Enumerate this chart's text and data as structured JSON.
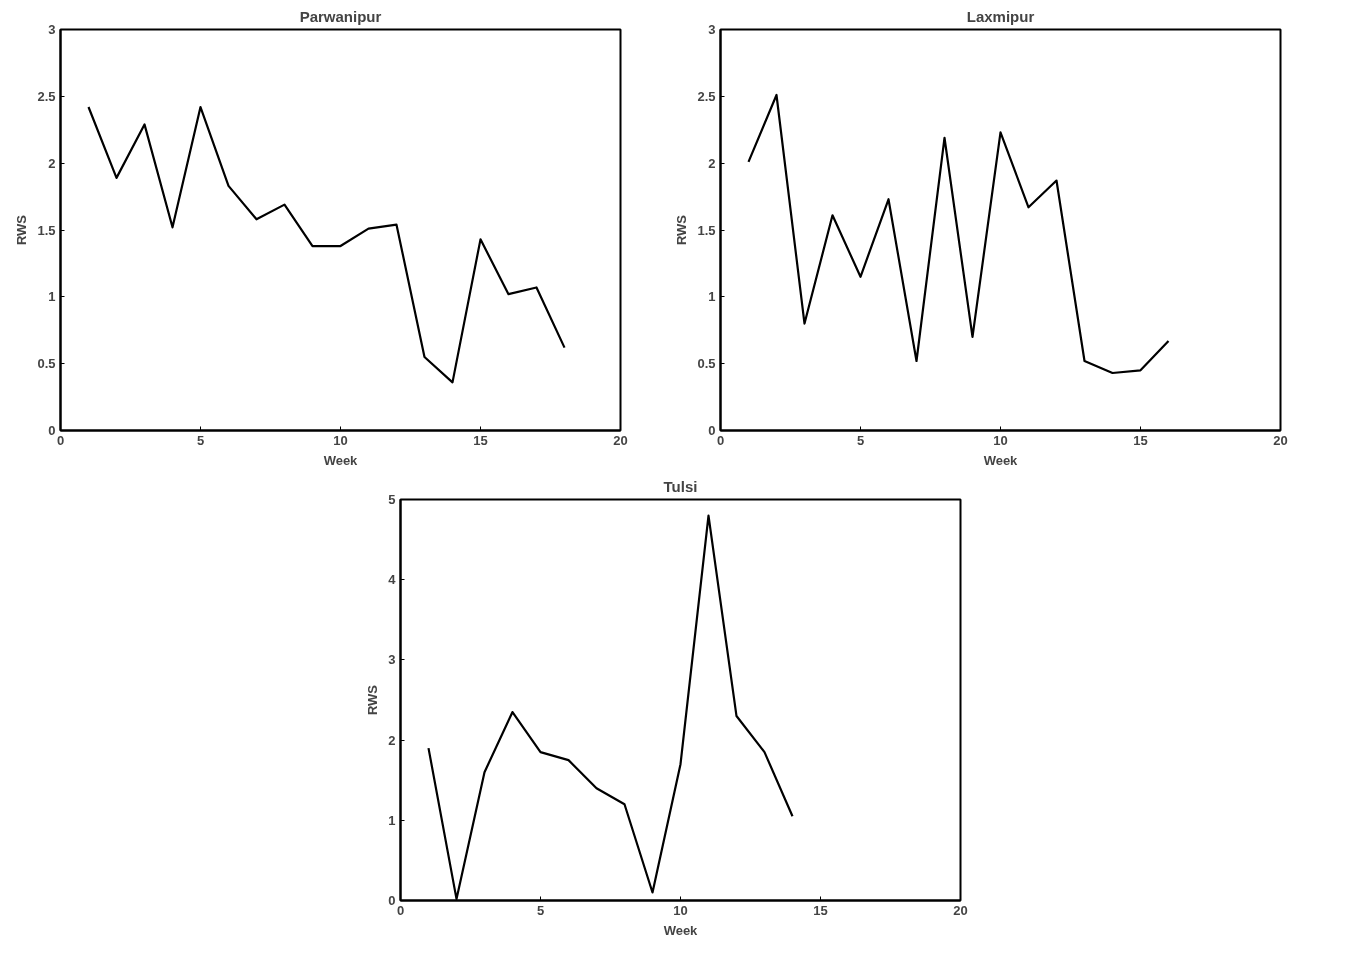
{
  "chart_data": [
    {
      "type": "line",
      "title": "Parwanipur",
      "xlabel": "Week",
      "ylabel": "RWS",
      "x": [
        1,
        2,
        3,
        4,
        5,
        6,
        7,
        8,
        9,
        10,
        11,
        12,
        13,
        14,
        15,
        16,
        17,
        18
      ],
      "series": [
        {
          "color": "#000000",
          "values": [
            2.42,
            1.89,
            2.29,
            1.52,
            2.42,
            1.83,
            1.58,
            1.69,
            1.38,
            1.38,
            1.51,
            1.54,
            0.55,
            0.36,
            1.43,
            1.02,
            1.07,
            0.62
          ]
        }
      ],
      "xlim": [
        0,
        20
      ],
      "xticks": [
        0,
        5,
        10,
        15,
        20
      ],
      "ylim": [
        0,
        3
      ],
      "yticks": [
        0,
        0.5,
        1,
        1.5,
        2,
        2.5,
        3
      ],
      "grid": false
    },
    {
      "type": "line",
      "title": "Laxmipur",
      "xlabel": "Week",
      "ylabel": "RWS",
      "x": [
        1,
        2,
        3,
        4,
        5,
        6,
        7,
        8,
        9,
        10,
        11,
        12,
        13,
        14,
        15,
        16
      ],
      "series": [
        {
          "color": "#000000",
          "values": [
            2.01,
            2.51,
            0.8,
            1.61,
            1.15,
            1.73,
            0.52,
            2.19,
            0.7,
            2.23,
            1.67,
            1.87,
            0.52,
            0.43,
            0.45,
            0.67
          ]
        }
      ],
      "xlim": [
        0,
        20
      ],
      "xticks": [
        0,
        5,
        10,
        15,
        20
      ],
      "ylim": [
        0,
        3
      ],
      "yticks": [
        0,
        0.5,
        1,
        1.5,
        2,
        2.5,
        3
      ],
      "grid": false
    },
    {
      "type": "line",
      "title": "Tulsi",
      "xlabel": "Week",
      "ylabel": "RWS",
      "x": [
        1,
        2,
        3,
        4,
        5,
        6,
        7,
        8,
        9,
        10,
        11,
        12,
        13,
        14
      ],
      "series": [
        {
          "color": "#000000",
          "values": [
            1.9,
            0.02,
            1.6,
            2.35,
            1.85,
            1.75,
            1.4,
            1.2,
            0.1,
            1.7,
            4.8,
            2.3,
            1.85,
            1.05
          ]
        }
      ],
      "xlim": [
        0,
        20
      ],
      "xticks": [
        0,
        5,
        10,
        15,
        20
      ],
      "ylim": [
        0,
        5
      ],
      "yticks": [
        0,
        1,
        2,
        3,
        4,
        5
      ],
      "grid": false
    }
  ]
}
